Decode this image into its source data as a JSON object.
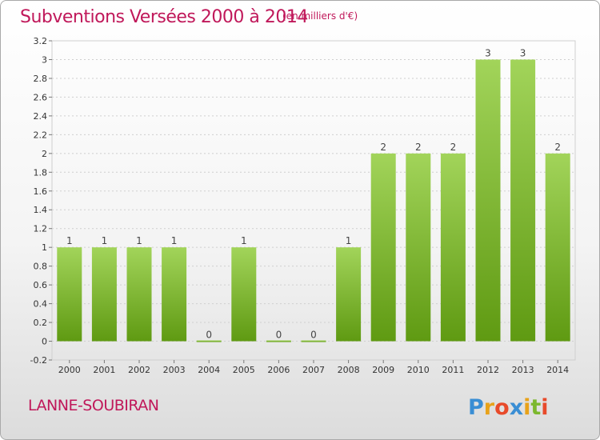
{
  "header": {
    "title": "Subventions Versées 2000 à 2014",
    "unit_note": "(en milliers d'€)"
  },
  "footer": {
    "commune": "LANNE-SOUBIRAN",
    "logo_text": "Proxiti"
  },
  "colors": {
    "title": "#c0185a",
    "bar_light": "#a2d45a",
    "bar_dark": "#5f9a12",
    "grid": "#cfcfcf",
    "axis_text": "#333333"
  },
  "chart_data": {
    "type": "bar",
    "title": "Subventions Versées 2000 à 2014",
    "ylabel": "",
    "xlabel": "",
    "categories": [
      "2000",
      "2001",
      "2002",
      "2003",
      "2004",
      "2005",
      "2006",
      "2007",
      "2008",
      "2009",
      "2010",
      "2011",
      "2012",
      "2013",
      "2014"
    ],
    "values": [
      1,
      1,
      1,
      1,
      0,
      1,
      0,
      0,
      1,
      2,
      2,
      2,
      3,
      3,
      2
    ],
    "data_labels": [
      "1",
      "1",
      "1",
      "1",
      "0",
      "1",
      "0",
      "0",
      "1",
      "2",
      "2",
      "2",
      "3",
      "3",
      "2"
    ],
    "ylim": [
      -0.2,
      3.2
    ],
    "yticks": [
      "-0.2",
      "0",
      "0.2",
      "0.4",
      "0.6",
      "0.8",
      "1",
      "1.2",
      "1.4",
      "1.6",
      "1.8",
      "2",
      "2.2",
      "2.4",
      "2.6",
      "2.8",
      "3",
      "3.2"
    ],
    "grid": true,
    "legend": "none"
  }
}
